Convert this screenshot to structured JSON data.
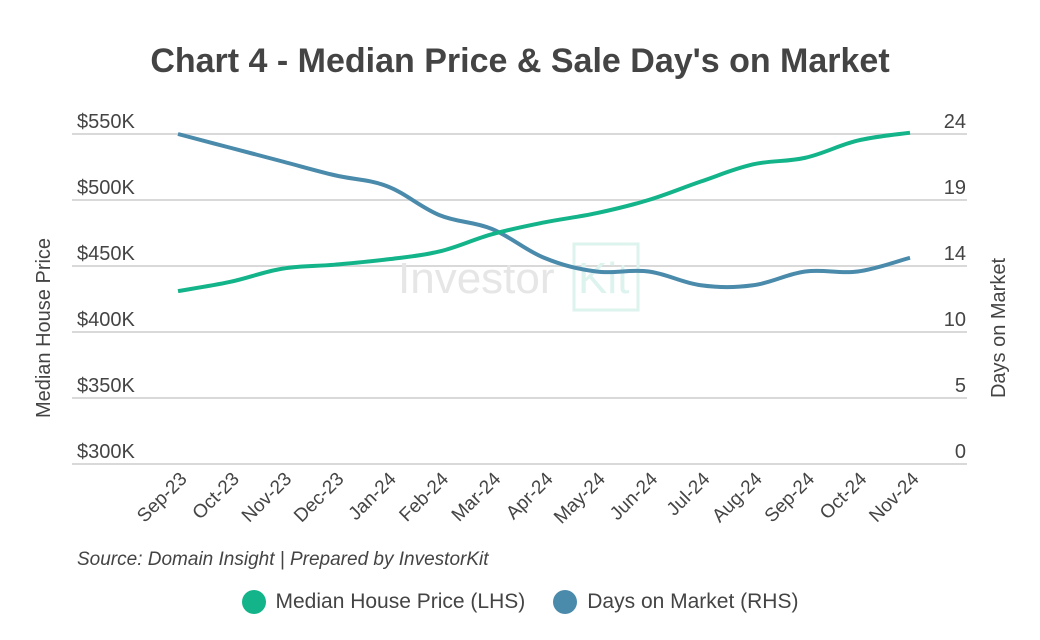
{
  "chart_data": {
    "type": "line",
    "title": "Chart 4 - Median Price & Sale Day's on Market",
    "categories": [
      "Sep-23",
      "Oct-23",
      "Nov-23",
      "Dec-23",
      "Jan-24",
      "Feb-24",
      "Mar-24",
      "Apr-24",
      "May-24",
      "Jun-24",
      "Jul-24",
      "Aug-24",
      "Sep-24",
      "Oct-24",
      "Nov-24"
    ],
    "series": [
      {
        "name": "Median House Price (LHS)",
        "axis": "left",
        "color": "#13b48a",
        "values": [
          431000,
          438000,
          448000,
          451000,
          455000,
          461000,
          474000,
          483000,
          490000,
          500000,
          514000,
          527000,
          532000,
          545000,
          551000
        ]
      },
      {
        "name": "Days on Market (RHS)",
        "axis": "right",
        "color": "#4a8aab",
        "values": [
          24,
          23,
          22,
          21,
          20.2,
          18.1,
          17.1,
          15,
          14,
          14,
          13,
          13,
          14,
          14,
          15
        ]
      }
    ],
    "ylabel": "Median House Price",
    "y2label": "Days on Market",
    "ylim": [
      300000,
      550000
    ],
    "y2lim": [
      0,
      24
    ],
    "yticks": [
      "$300K",
      "$350K",
      "$400K",
      "$450K",
      "$500K",
      "$550K"
    ],
    "y2ticks": [
      "0",
      "5",
      "10",
      "14",
      "19",
      "24"
    ],
    "grid": true,
    "legend": "bottom",
    "source": "Source: Domain Insight | Prepared by InvestorKit",
    "watermark": "InvestorKit"
  }
}
